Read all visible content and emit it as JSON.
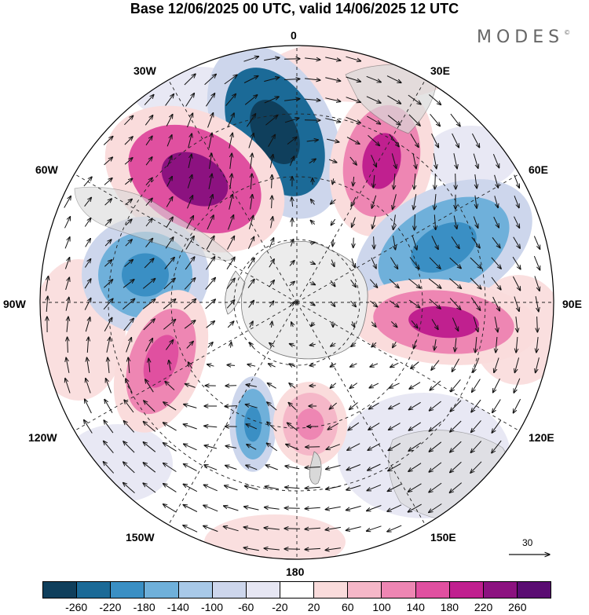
{
  "title": "Base 12/06/2025 00 UTC, valid 14/06/2025 12 UTC",
  "logo": "MODES",
  "logo_mark": "©",
  "longitude_labels": {
    "lon_0": "0",
    "lon_30e": "30E",
    "lon_60e": "60E",
    "lon_90e": "90E",
    "lon_120e": "120E",
    "lon_150e": "150E",
    "lon_180": "180",
    "lon_150w": "150W",
    "lon_120w": "120W",
    "lon_90w": "90W",
    "lon_60w": "60W",
    "lon_30w": "30W"
  },
  "vector_scale_label": "30",
  "colorbar": {
    "colors": [
      "#0f3f5c",
      "#1b6a97",
      "#3a8fc4",
      "#6fb0da",
      "#a8c9e8",
      "#cdd6ec",
      "#e6e6f3",
      "#ffffff",
      "#fadcdc",
      "#f5b7c8",
      "#ee86b3",
      "#e050a0",
      "#c0208f",
      "#8c1280",
      "#5a0c72"
    ],
    "ticks": [
      "-260",
      "-220",
      "-180",
      "-140",
      "-100",
      "-60",
      "-20",
      "20",
      "60",
      "100",
      "140",
      "180",
      "220",
      "260"
    ]
  },
  "anomalies": [
    {
      "name": "blue-0",
      "color": "#1b6a97",
      "inner": "#0f3f5c"
    },
    {
      "name": "pink-45w",
      "color": "#e050a0",
      "inner": "#8c1280"
    },
    {
      "name": "pink-40e",
      "color": "#ee86b3",
      "inner": "#c0208f"
    },
    {
      "name": "blue-70e",
      "color": "#6fb0da",
      "inner": "#3a8fc4"
    },
    {
      "name": "pink-95e",
      "color": "#ee86b3",
      "inner": "#c0208f"
    },
    {
      "name": "blue-80w",
      "color": "#6fb0da",
      "inner": "#3a8fc4"
    },
    {
      "name": "pink-105w",
      "color": "#ee86b3",
      "inner": "#e050a0"
    },
    {
      "name": "blue-165w",
      "color": "#6fb0da",
      "inner": "#3a8fc4"
    },
    {
      "name": "pink-175e",
      "color": "#f5b7c8",
      "inner": "#ee86b3"
    }
  ]
}
